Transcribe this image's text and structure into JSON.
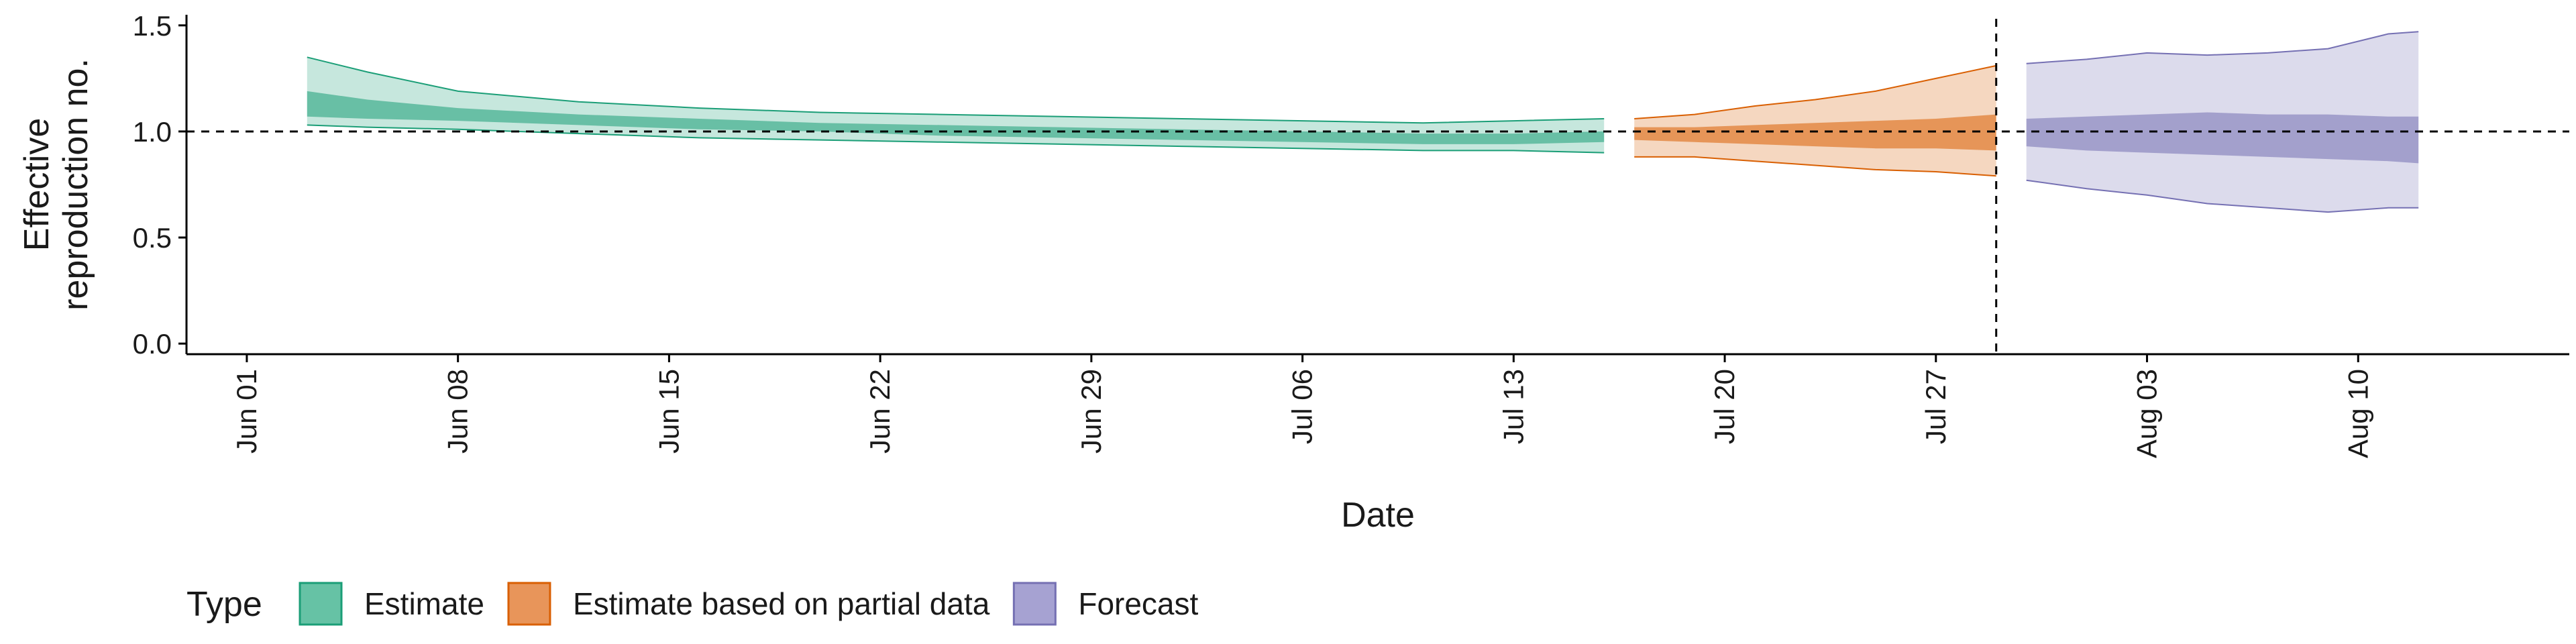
{
  "chart_data": {
    "type": "area",
    "xlabel": "Date",
    "ylabel": [
      "Effective",
      "reproduction no."
    ],
    "ylim": [
      -0.05,
      1.55
    ],
    "yticks": [
      0.0,
      0.5,
      1.0,
      1.5
    ],
    "ytick_labels": [
      "0.0",
      "0.5",
      "1.0",
      "1.5"
    ],
    "xlim": [
      "2020-05-30",
      "2020-08-17"
    ],
    "xticks": [
      "2020-06-01",
      "2020-06-08",
      "2020-06-15",
      "2020-06-22",
      "2020-06-29",
      "2020-07-06",
      "2020-07-13",
      "2020-07-20",
      "2020-07-27",
      "2020-08-03",
      "2020-08-10"
    ],
    "xtick_labels": [
      "Jun 01",
      "Jun 08",
      "Jun 15",
      "Jun 22",
      "Jun 29",
      "Jul 06",
      "Jul 13",
      "Jul 20",
      "Jul 27",
      "Aug 03",
      "Aug 10"
    ],
    "reference_line_y": 1.0,
    "forecast_start": "2020-07-29",
    "grid": false,
    "legend": {
      "title": "Type",
      "position": "bottom",
      "items": [
        {
          "label": "Estimate",
          "fill": "#66c2a5",
          "stroke": "#1b9e77"
        },
        {
          "label": "Estimate based on partial data",
          "fill": "#e8955a",
          "stroke": "#d95f02"
        },
        {
          "label": "Forecast",
          "fill": "#a6a2d2",
          "stroke": "#7570b3"
        }
      ]
    },
    "series": [
      {
        "name": "Estimate",
        "color": "#1b9e77",
        "x": [
          "2020-06-03",
          "2020-06-05",
          "2020-06-08",
          "2020-06-12",
          "2020-06-16",
          "2020-06-20",
          "2020-06-24",
          "2020-06-28",
          "2020-07-02",
          "2020-07-06",
          "2020-07-10",
          "2020-07-13",
          "2020-07-16"
        ],
        "upper90": [
          1.35,
          1.28,
          1.19,
          1.14,
          1.11,
          1.09,
          1.08,
          1.07,
          1.06,
          1.05,
          1.04,
          1.05,
          1.06
        ],
        "upper50": [
          1.19,
          1.15,
          1.11,
          1.08,
          1.06,
          1.04,
          1.03,
          1.02,
          1.01,
          1.0,
          0.99,
          0.99,
          1.0
        ],
        "lower50": [
          1.07,
          1.06,
          1.05,
          1.03,
          1.01,
          1.0,
          0.98,
          0.97,
          0.96,
          0.95,
          0.94,
          0.94,
          0.95
        ],
        "lower90": [
          1.03,
          1.02,
          1.01,
          0.99,
          0.97,
          0.96,
          0.95,
          0.94,
          0.93,
          0.92,
          0.91,
          0.91,
          0.9
        ]
      },
      {
        "name": "Estimate based on partial data",
        "color": "#d95f02",
        "x": [
          "2020-07-17",
          "2020-07-19",
          "2020-07-21",
          "2020-07-23",
          "2020-07-25",
          "2020-07-27",
          "2020-07-29"
        ],
        "upper90": [
          1.06,
          1.08,
          1.12,
          1.15,
          1.19,
          1.25,
          1.31
        ],
        "upper50": [
          1.02,
          1.02,
          1.03,
          1.04,
          1.05,
          1.06,
          1.08
        ],
        "lower50": [
          0.96,
          0.95,
          0.94,
          0.93,
          0.92,
          0.92,
          0.91
        ],
        "lower90": [
          0.88,
          0.88,
          0.86,
          0.84,
          0.82,
          0.81,
          0.79
        ]
      },
      {
        "name": "Forecast",
        "color": "#7570b3",
        "x": [
          "2020-07-30",
          "2020-08-01",
          "2020-08-03",
          "2020-08-05",
          "2020-08-07",
          "2020-08-09",
          "2020-08-11",
          "2020-08-12"
        ],
        "upper90": [
          1.32,
          1.34,
          1.37,
          1.36,
          1.37,
          1.39,
          1.46,
          1.47
        ],
        "upper50": [
          1.06,
          1.07,
          1.08,
          1.09,
          1.08,
          1.08,
          1.07,
          1.07
        ],
        "lower50": [
          0.93,
          0.91,
          0.9,
          0.89,
          0.88,
          0.87,
          0.86,
          0.85
        ],
        "lower90": [
          0.77,
          0.73,
          0.7,
          0.66,
          0.64,
          0.62,
          0.64,
          0.64
        ]
      }
    ]
  }
}
